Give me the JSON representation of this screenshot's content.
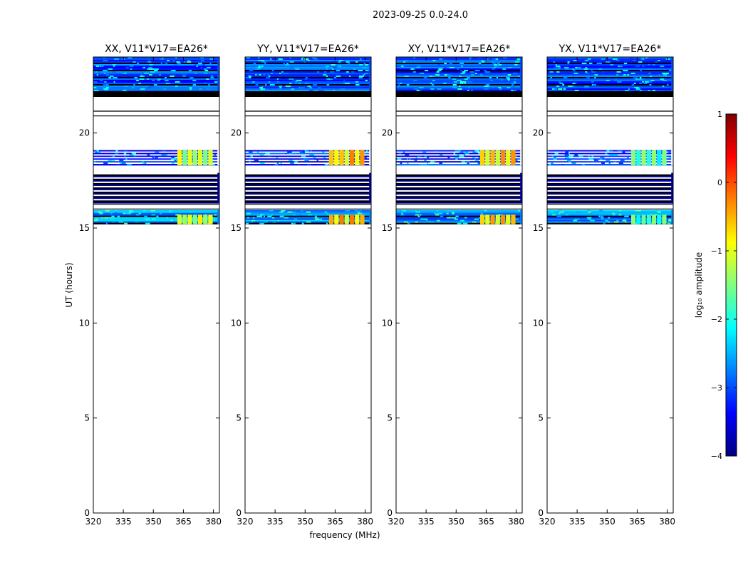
{
  "figure": {
    "suptitle": "2023-09-25 0.0-24.0",
    "xlabel": "frequency (MHz)",
    "ylabel": "UT (hours)"
  },
  "colorbar": {
    "label": "log₁₀ amplitude",
    "ticks": [
      "1",
      "0",
      "−1",
      "−2",
      "−3",
      "−4"
    ],
    "range": [
      -4,
      1
    ]
  },
  "chart_data": {
    "type": "heatmap",
    "xlim": [
      320,
      383
    ],
    "ylim": [
      0,
      24
    ],
    "x_ticks": [
      320,
      335,
      350,
      365,
      380
    ],
    "x_tick_labels": [
      "320",
      "335",
      "350",
      "365",
      "380"
    ],
    "y_ticks": [
      0,
      5,
      10,
      15,
      20
    ],
    "y_tick_labels": [
      "0",
      "5",
      "10",
      "15",
      "20"
    ],
    "panels": [
      {
        "title": "XX, V11*V17=EA26*",
        "level_hot": -0.7
      },
      {
        "title": "YY, V11*V17=EA26*",
        "level_hot": -0.2
      },
      {
        "title": "XY, V11*V17=EA26*",
        "level_hot": -0.3
      },
      {
        "title": "YX, V11*V17=EA26*",
        "level_hot": -1.3
      }
    ],
    "data_bands": [
      {
        "t0": 22.2,
        "t1": 24.0,
        "kind": "noisy",
        "level": -3.0
      },
      {
        "t0": 21.9,
        "t1": 22.2,
        "kind": "dark",
        "level": -4.0
      },
      {
        "t0": 20.9,
        "t1": 21.15,
        "kind": "lines",
        "level": -4.0
      },
      {
        "t0": 18.3,
        "t1": 19.1,
        "kind": "striped",
        "level": -3.2
      },
      {
        "t0": 16.3,
        "t1": 17.9,
        "kind": "dark-striped",
        "level": -3.8
      },
      {
        "t0": 16.0,
        "t1": 16.25,
        "kind": "lines",
        "level": -4.0
      },
      {
        "t0": 15.2,
        "t1": 15.95,
        "kind": "noisy",
        "level": -2.7
      }
    ],
    "rfi_x_range": [
      362,
      380
    ],
    "rfi_time_ranges": [
      [
        18.3,
        19.1
      ],
      [
        15.2,
        15.7
      ]
    ]
  }
}
